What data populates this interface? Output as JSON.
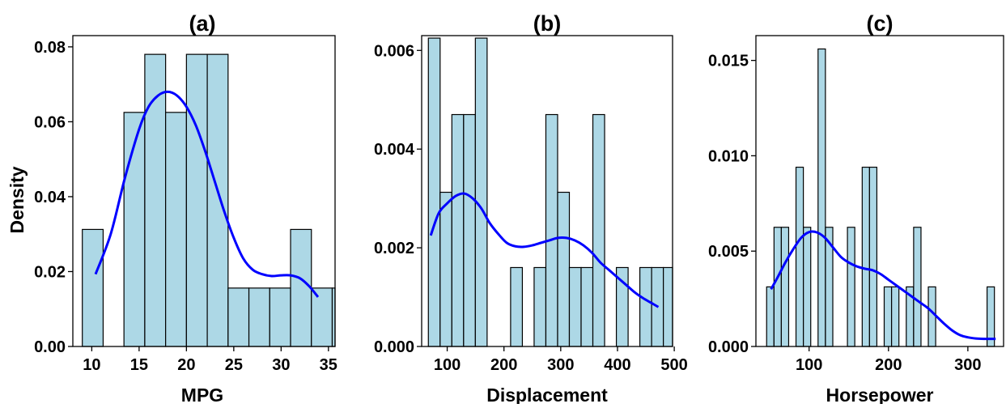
{
  "chart_data": [
    {
      "type": "bar",
      "title": "(a)",
      "xlabel": "MPG",
      "ylabel": "Density",
      "xlim": [
        8.0,
        35.7
      ],
      "ylim": [
        0,
        0.083
      ],
      "xticks": [
        10,
        15,
        20,
        25,
        30,
        35
      ],
      "xtick_labels": [
        "10",
        "15",
        "20",
        "25",
        "30",
        "35"
      ],
      "yticks": [
        0.0,
        0.02,
        0.04,
        0.06,
        0.08
      ],
      "ytick_labels": [
        "0.00",
        "0.02",
        "0.04",
        "0.06",
        "0.08"
      ],
      "bin_width": 2.2,
      "bins": [
        {
          "x0": 9.0,
          "value": 0.03125
        },
        {
          "x0": 11.2,
          "value": 0.0
        },
        {
          "x0": 13.4,
          "value": 0.0625
        },
        {
          "x0": 15.6,
          "value": 0.078
        },
        {
          "x0": 17.8,
          "value": 0.0625
        },
        {
          "x0": 20.0,
          "value": 0.078
        },
        {
          "x0": 22.2,
          "value": 0.078
        },
        {
          "x0": 24.4,
          "value": 0.0156
        },
        {
          "x0": 26.6,
          "value": 0.0156
        },
        {
          "x0": 28.8,
          "value": 0.0156
        },
        {
          "x0": 31.0,
          "value": 0.03125
        },
        {
          "x0": 33.2,
          "value": 0.0156
        },
        {
          "x0": 35.4,
          "value": 0.0156
        }
      ],
      "density_curve": {
        "x": [
          10.4,
          12,
          13.5,
          15,
          16,
          17,
          18,
          19,
          20,
          21,
          22,
          23,
          24,
          25,
          26,
          27,
          28,
          29,
          30,
          31,
          32,
          33,
          33.9
        ],
        "y": [
          0.0193,
          0.03,
          0.045,
          0.058,
          0.064,
          0.067,
          0.068,
          0.067,
          0.064,
          0.059,
          0.052,
          0.044,
          0.036,
          0.029,
          0.0235,
          0.0205,
          0.0193,
          0.0188,
          0.019,
          0.019,
          0.0182,
          0.016,
          0.0132
        ]
      }
    },
    {
      "type": "bar",
      "title": "(b)",
      "xlabel": "Displacement",
      "ylabel": "",
      "xlim": [
        55,
        497
      ],
      "ylim": [
        0,
        0.0063
      ],
      "xticks": [
        100,
        200,
        300,
        400,
        500
      ],
      "xtick_labels": [
        "100",
        "200",
        "300",
        "400",
        "500"
      ],
      "yticks": [
        0.0,
        0.002,
        0.004,
        0.006
      ],
      "ytick_labels": [
        "0.000",
        "0.002",
        "0.004",
        "0.006"
      ],
      "bin_width": 20.7,
      "bins": [
        {
          "x0": 66.8,
          "value": 0.00625
        },
        {
          "x0": 87.5,
          "value": 0.003125
        },
        {
          "x0": 108.2,
          "value": 0.0047
        },
        {
          "x0": 128.9,
          "value": 0.0047
        },
        {
          "x0": 149.6,
          "value": 0.00625
        },
        {
          "x0": 170.3,
          "value": 0.0
        },
        {
          "x0": 191.0,
          "value": 0.0
        },
        {
          "x0": 211.7,
          "value": 0.0016
        },
        {
          "x0": 232.4,
          "value": 0.0
        },
        {
          "x0": 253.1,
          "value": 0.0016
        },
        {
          "x0": 273.8,
          "value": 0.0047
        },
        {
          "x0": 294.5,
          "value": 0.003125
        },
        {
          "x0": 315.2,
          "value": 0.0016
        },
        {
          "x0": 335.9,
          "value": 0.0016
        },
        {
          "x0": 356.6,
          "value": 0.0047
        },
        {
          "x0": 377.3,
          "value": 0.0
        },
        {
          "x0": 398.0,
          "value": 0.0016
        },
        {
          "x0": 418.7,
          "value": 0.0
        },
        {
          "x0": 439.4,
          "value": 0.0016
        },
        {
          "x0": 460.1,
          "value": 0.0016
        },
        {
          "x0": 480.8,
          "value": 0.0016
        }
      ],
      "density_curve": {
        "x": [
          71,
          85,
          100,
          115,
          130,
          145,
          160,
          175,
          190,
          205,
          220,
          235,
          250,
          265,
          280,
          295,
          310,
          325,
          340,
          355,
          370,
          385,
          400,
          415,
          430,
          445,
          460,
          472
        ],
        "y": [
          0.00225,
          0.0027,
          0.0029,
          0.00305,
          0.0031,
          0.003,
          0.0028,
          0.0025,
          0.00228,
          0.0021,
          0.00203,
          0.00202,
          0.00205,
          0.0021,
          0.00215,
          0.0022,
          0.0022,
          0.00215,
          0.00205,
          0.0019,
          0.0017,
          0.00155,
          0.0014,
          0.00125,
          0.0011,
          0.00098,
          0.00088,
          0.0008
        ]
      }
    },
    {
      "type": "bar",
      "title": "(c)",
      "xlabel": "Horsepower",
      "ylabel": "",
      "xlim": [
        33,
        345
      ],
      "ylim": [
        0,
        0.0163
      ],
      "xticks": [
        100,
        200,
        300
      ],
      "xtick_labels": [
        "100",
        "200",
        "300"
      ],
      "yticks": [
        0.0,
        0.005,
        0.01,
        0.015
      ],
      "ytick_labels": [
        "0.000",
        "0.005",
        "0.010",
        "0.015"
      ],
      "bin_width": 9.26,
      "bins": [
        {
          "x0": 46.5,
          "value": 0.003125
        },
        {
          "x0": 55.8,
          "value": 0.00625
        },
        {
          "x0": 65.0,
          "value": 0.00625
        },
        {
          "x0": 74.3,
          "value": 0.0
        },
        {
          "x0": 83.5,
          "value": 0.0094
        },
        {
          "x0": 92.8,
          "value": 0.00625
        },
        {
          "x0": 102.1,
          "value": 0.0
        },
        {
          "x0": 111.3,
          "value": 0.0156
        },
        {
          "x0": 120.6,
          "value": 0.00625
        },
        {
          "x0": 129.8,
          "value": 0.0
        },
        {
          "x0": 139.1,
          "value": 0.0
        },
        {
          "x0": 148.3,
          "value": 0.00625
        },
        {
          "x0": 157.6,
          "value": 0.0
        },
        {
          "x0": 166.9,
          "value": 0.0094
        },
        {
          "x0": 176.1,
          "value": 0.0094
        },
        {
          "x0": 185.4,
          "value": 0.0
        },
        {
          "x0": 194.6,
          "value": 0.003125
        },
        {
          "x0": 203.9,
          "value": 0.003125
        },
        {
          "x0": 213.1,
          "value": 0.0
        },
        {
          "x0": 222.4,
          "value": 0.003125
        },
        {
          "x0": 231.7,
          "value": 0.00625
        },
        {
          "x0": 240.9,
          "value": 0.0
        },
        {
          "x0": 250.2,
          "value": 0.003125
        },
        {
          "x0": 259.4,
          "value": 0.0
        },
        {
          "x0": 268.7,
          "value": 0.0
        },
        {
          "x0": 277.9,
          "value": 0.0
        },
        {
          "x0": 287.2,
          "value": 0.0
        },
        {
          "x0": 296.4,
          "value": 0.0
        },
        {
          "x0": 305.7,
          "value": 0.0
        },
        {
          "x0": 315.0,
          "value": 0.0
        },
        {
          "x0": 324.2,
          "value": 0.003125
        }
      ],
      "density_curve": {
        "x": [
          52,
          60,
          70,
          80,
          90,
          100,
          110,
          120,
          130,
          140,
          150,
          160,
          170,
          180,
          190,
          200,
          210,
          220,
          230,
          240,
          250,
          260,
          270,
          280,
          290,
          300,
          310,
          320,
          330,
          335
        ],
        "y": [
          0.003,
          0.0036,
          0.0044,
          0.0051,
          0.0057,
          0.006,
          0.00598,
          0.0057,
          0.0052,
          0.0047,
          0.0044,
          0.0042,
          0.00408,
          0.004,
          0.0038,
          0.0035,
          0.0032,
          0.0029,
          0.0026,
          0.0023,
          0.002,
          0.0016,
          0.0012,
          0.00085,
          0.0006,
          0.00048,
          0.00042,
          0.0004,
          0.0004,
          0.0004
        ]
      }
    }
  ],
  "style": {
    "bar_fill": "#ADD8E6",
    "bar_stroke": "#000000",
    "curve_color": "#0000FF",
    "background": "#FFFFFF"
  }
}
